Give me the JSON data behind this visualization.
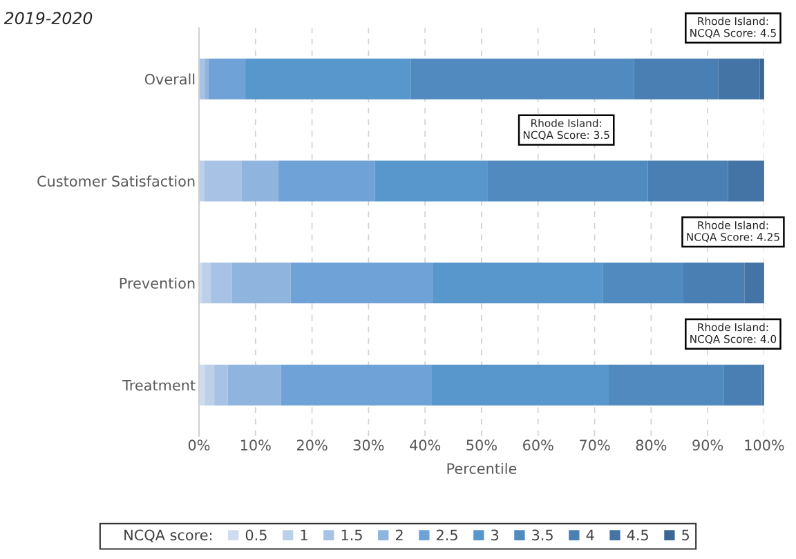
{
  "chart_data": {
    "type": "bar",
    "orientation": "horizontal",
    "stacked": true,
    "title": "2019-2020",
    "xlabel": "Percentile",
    "legend_title": "NCQA score:",
    "legend": "bottom",
    "grid": "x",
    "categories": [
      "Overall",
      "Customer Satisfaction",
      "Prevention",
      "Treatment"
    ],
    "xlim": [
      0,
      100
    ],
    "xticks": [
      {
        "value": 0,
        "label": "0%"
      },
      {
        "value": 10,
        "label": "10%"
      },
      {
        "value": 20,
        "label": "20%"
      },
      {
        "value": 30,
        "label": "30%"
      },
      {
        "value": 40,
        "label": "40%"
      },
      {
        "value": 50,
        "label": "50%"
      },
      {
        "value": 60,
        "label": "60%"
      },
      {
        "value": 70,
        "label": "70%"
      },
      {
        "value": 80,
        "label": "80%"
      },
      {
        "value": 90,
        "label": "90%"
      },
      {
        "value": 100,
        "label": "100%"
      }
    ],
    "series": [
      {
        "name": "0.5",
        "color": "#cfdcef",
        "values": [
          0,
          0,
          0.5,
          1.0
        ]
      },
      {
        "name": "1",
        "color": "#bcd0ea",
        "values": [
          0,
          0.9,
          1.5,
          1.7
        ]
      },
      {
        "name": "1.5",
        "color": "#a8c2e6",
        "values": [
          1.1,
          6.6,
          3.8,
          2.4
        ]
      },
      {
        "name": "2",
        "color": "#8fb4de",
        "values": [
          0.6,
          6.5,
          10.4,
          9.4
        ]
      },
      {
        "name": "2.5",
        "color": "#6fa2d6",
        "values": [
          6.5,
          17.1,
          25.1,
          26.7
        ]
      },
      {
        "name": "3",
        "color": "#5797cc",
        "values": [
          29.3,
          20.0,
          30.2,
          31.3
        ]
      },
      {
        "name": "3.5",
        "color": "#518abf",
        "values": [
          39.5,
          28.3,
          14.1,
          20.4
        ]
      },
      {
        "name": "4",
        "color": "#4a7fb3",
        "values": [
          14.9,
          14.2,
          10.9,
          6.7
        ]
      },
      {
        "name": "4.5",
        "color": "#4374a5",
        "values": [
          7.3,
          6.4,
          3.5,
          0.4
        ]
      },
      {
        "name": "5",
        "color": "#3a6796",
        "values": [
          0.8,
          0,
          0,
          0
        ]
      }
    ],
    "annotations": [
      "Rhode Island:\nNCQA Score: 4.5",
      "Rhode Island:\nNCQA Score: 3.5",
      "Rhode Island:\nNCQA Score: 4.25",
      "Rhode Island:\nNCQA Score: 4.0"
    ]
  }
}
